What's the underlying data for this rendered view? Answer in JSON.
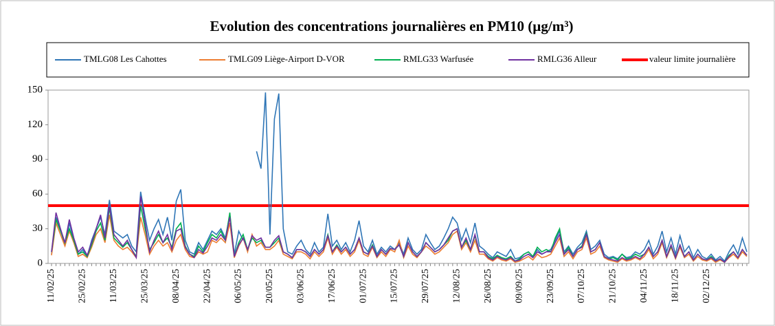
{
  "chart_data": {
    "type": "line",
    "title": "Evolution des concentrations journalières en PM10 (µg/m³)",
    "categories": [
      "11/02/25",
      null,
      null,
      null,
      null,
      null,
      null,
      "25/02/25",
      null,
      null,
      null,
      null,
      null,
      null,
      "11/03/25",
      null,
      null,
      null,
      null,
      null,
      null,
      "25/03/25",
      null,
      null,
      null,
      null,
      null,
      null,
      "08/04/25",
      null,
      null,
      null,
      null,
      null,
      null,
      "22/04/25",
      null,
      null,
      null,
      null,
      null,
      null,
      "06/05/25",
      null,
      null,
      null,
      null,
      null,
      null,
      "20/05/25",
      null,
      null,
      null,
      null,
      null,
      null,
      "03/06/25",
      null,
      null,
      null,
      null,
      null,
      null,
      "17/06/25",
      null,
      null,
      null,
      null,
      null,
      null,
      "01/07/25",
      null,
      null,
      null,
      null,
      null,
      null,
      "15/07/25",
      null,
      null,
      null,
      null,
      null,
      null,
      "29/07/25",
      null,
      null,
      null,
      null,
      null,
      null,
      "12/08/25",
      null,
      null,
      null,
      null,
      null,
      null,
      "26/08/25",
      null,
      null,
      null,
      null,
      null,
      null,
      "09/09/25",
      null,
      null,
      null,
      null,
      null,
      null,
      "23/09/25",
      null,
      null,
      null,
      null,
      null,
      null,
      "07/10/25",
      null,
      null,
      null,
      null,
      null,
      null,
      "21/10/25",
      null,
      null,
      null,
      null,
      null,
      null,
      "04/11/25",
      null,
      null,
      null,
      null,
      null,
      null,
      "18/11/25",
      null,
      null,
      null,
      null,
      null,
      null,
      "02/12/25",
      null,
      null,
      null,
      null,
      null,
      null,
      null,
      null,
      null
    ],
    "series": [
      {
        "name": "TMLG08 Les Cahottes",
        "color": "#2e75b6",
        "values": [
          8,
          40,
          30,
          15,
          35,
          20,
          8,
          12,
          6,
          20,
          30,
          40,
          25,
          55,
          28,
          25,
          22,
          25,
          15,
          10,
          62,
          40,
          20,
          30,
          38,
          25,
          40,
          20,
          54,
          64,
          20,
          10,
          8,
          18,
          12,
          20,
          28,
          25,
          30,
          22,
          42,
          8,
          28,
          20,
          null,
          null,
          97,
          82,
          148,
          25,
          125,
          147,
          30,
          10,
          8,
          15,
          20,
          12,
          8,
          18,
          10,
          14,
          43,
          15,
          20,
          12,
          18,
          10,
          20,
          37,
          15,
          10,
          20,
          8,
          14,
          10,
          15,
          12,
          18,
          8,
          22,
          12,
          8,
          12,
          25,
          18,
          12,
          15,
          22,
          30,
          40,
          35,
          20,
          30,
          18,
          35,
          15,
          12,
          8,
          5,
          10,
          8,
          6,
          12,
          4,
          5,
          8,
          10,
          6,
          12,
          8,
          10,
          12,
          20,
          28,
          10,
          15,
          8,
          14,
          18,
          28,
          12,
          15,
          20,
          8,
          5,
          6,
          4,
          8,
          5,
          6,
          10,
          8,
          12,
          20,
          8,
          15,
          28,
          10,
          22,
          8,
          24,
          10,
          15,
          5,
          12,
          6,
          4,
          8,
          3,
          6,
          2,
          10,
          16,
          8,
          22,
          10
        ]
      },
      {
        "name": "TMLG09 Liège-Airport D-VOR",
        "color": "#ed7d31",
        "values": [
          7,
          35,
          25,
          15,
          28,
          18,
          6,
          8,
          5,
          14,
          25,
          30,
          18,
          42,
          20,
          15,
          12,
          14,
          10,
          5,
          40,
          25,
          8,
          15,
          20,
          15,
          18,
          10,
          20,
          25,
          12,
          6,
          5,
          10,
          8,
          10,
          20,
          18,
          22,
          18,
          35,
          5,
          15,
          22,
          10,
          25,
          15,
          18,
          12,
          12,
          15,
          20,
          8,
          6,
          4,
          10,
          10,
          8,
          4,
          10,
          6,
          10,
          22,
          8,
          14,
          8,
          12,
          6,
          10,
          20,
          8,
          6,
          14,
          5,
          10,
          6,
          12,
          10,
          20,
          5,
          15,
          8,
          5,
          10,
          15,
          12,
          8,
          10,
          14,
          18,
          25,
          28,
          12,
          18,
          10,
          20,
          8,
          8,
          4,
          2,
          5,
          3,
          2,
          4,
          1,
          2,
          4,
          6,
          3,
          8,
          5,
          6,
          8,
          15,
          22,
          6,
          10,
          4,
          10,
          12,
          22,
          8,
          10,
          15,
          5,
          3,
          2,
          1,
          4,
          2,
          3,
          5,
          3,
          6,
          12,
          4,
          8,
          18,
          5,
          14,
          4,
          14,
          5,
          8,
          2,
          6,
          3,
          2,
          4,
          1,
          3,
          1,
          5,
          8,
          4,
          10,
          6
        ]
      },
      {
        "name": "RMLG33 Warfusée",
        "color": "#00b050",
        "values": [
          10,
          38,
          28,
          18,
          30,
          20,
          8,
          10,
          6,
          16,
          28,
          35,
          20,
          48,
          22,
          18,
          14,
          18,
          12,
          6,
          50,
          30,
          12,
          18,
          25,
          18,
          22,
          14,
          30,
          35,
          15,
          8,
          6,
          15,
          10,
          18,
          25,
          22,
          28,
          20,
          44,
          6,
          18,
          25,
          12,
          22,
          18,
          20,
          14,
          14,
          18,
          22,
          10,
          8,
          5,
          12,
          12,
          10,
          6,
          12,
          8,
          12,
          25,
          10,
          16,
          10,
          14,
          8,
          12,
          22,
          10,
          8,
          16,
          6,
          12,
          8,
          13,
          12,
          16,
          6,
          18,
          10,
          6,
          10,
          18,
          14,
          10,
          12,
          16,
          20,
          28,
          30,
          14,
          20,
          12,
          24,
          10,
          10,
          6,
          4,
          7,
          5,
          4,
          6,
          2,
          4,
          8,
          10,
          6,
          14,
          10,
          12,
          10,
          22,
          30,
          8,
          14,
          6,
          12,
          15,
          26,
          10,
          12,
          18,
          6,
          4,
          5,
          3,
          8,
          4,
          5,
          8,
          6,
          8,
          14,
          6,
          10,
          20,
          6,
          15,
          5,
          16,
          6,
          10,
          3,
          8,
          4,
          3,
          6,
          2,
          4,
          1,
          7,
          10,
          5,
          12,
          7
        ]
      },
      {
        "name": "RMLG36 Alleur",
        "color": "#7030a0",
        "values": [
          10,
          44,
          30,
          18,
          38,
          22,
          10,
          14,
          7,
          18,
          30,
          42,
          22,
          50,
          25,
          20,
          15,
          20,
          12,
          5,
          58,
          35,
          10,
          20,
          28,
          18,
          25,
          12,
          28,
          30,
          14,
          8,
          5,
          12,
          9,
          15,
          22,
          20,
          25,
          20,
          40,
          6,
          16,
          22,
          12,
          24,
          20,
          22,
          14,
          14,
          20,
          24,
          10,
          8,
          5,
          12,
          12,
          10,
          6,
          12,
          8,
          12,
          24,
          10,
          15,
          10,
          14,
          8,
          12,
          22,
          10,
          8,
          15,
          6,
          12,
          8,
          13,
          12,
          16,
          6,
          18,
          10,
          6,
          10,
          18,
          14,
          10,
          12,
          16,
          22,
          28,
          30,
          14,
          22,
          12,
          25,
          10,
          10,
          5,
          3,
          6,
          4,
          3,
          5,
          2,
          3,
          6,
          8,
          5,
          10,
          8,
          10,
          10,
          18,
          25,
          8,
          12,
          6,
          12,
          14,
          25,
          10,
          12,
          18,
          6,
          4,
          3,
          2,
          5,
          3,
          4,
          6,
          4,
          8,
          14,
          6,
          10,
          20,
          6,
          16,
          5,
          16,
          6,
          10,
          3,
          8,
          4,
          3,
          5,
          2,
          4,
          1,
          6,
          10,
          5,
          12,
          7
        ]
      }
    ],
    "reference_line": {
      "name": "valeur limite journalière",
      "value": 50,
      "color": "#ff0000"
    },
    "ylim": [
      0,
      150
    ],
    "yticks": [
      0,
      30,
      60,
      90,
      120,
      150
    ]
  }
}
